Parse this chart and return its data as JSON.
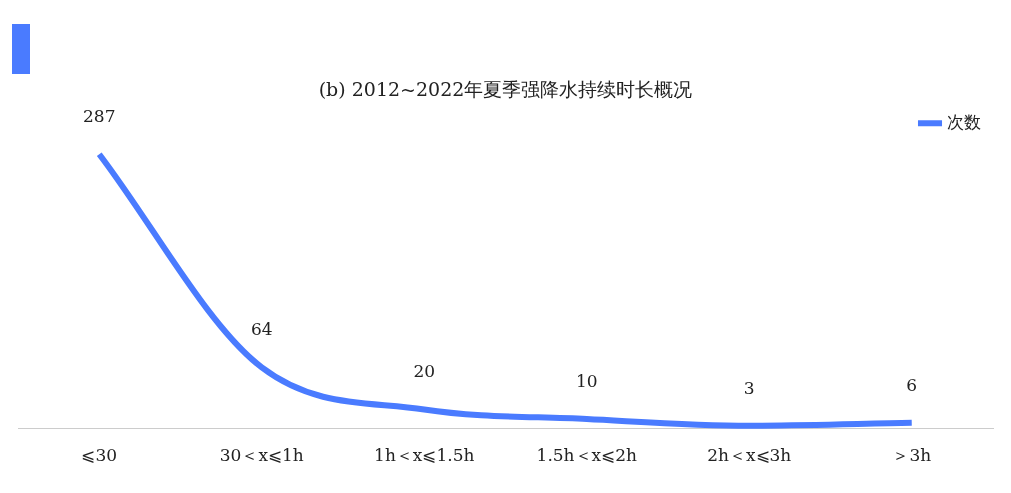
{
  "chart_data": {
    "type": "line",
    "title": "(b) 2012~2022年夏季强降水持续时长概况",
    "categories": [
      "⩽30",
      "30＜x⩽1h",
      "1h＜x⩽1.5h",
      "1.5h＜x⩽2h",
      "2h＜x⩽3h",
      "＞3h"
    ],
    "series": [
      {
        "name": "次数",
        "color": "#4a7bff",
        "values": [
          287,
          64,
          20,
          10,
          3,
          6
        ]
      }
    ],
    "data_labels": true,
    "legend": "top right",
    "grid": false,
    "marker": "none"
  }
}
